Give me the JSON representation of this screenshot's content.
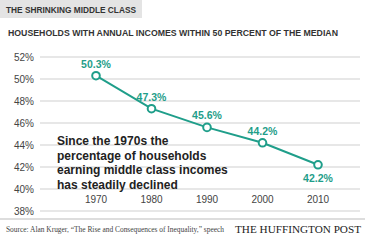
{
  "chart_data": {
    "type": "line",
    "banner": "THE SHRINKING MIDDLE CLASS",
    "title": "HOUSEHOLDS WITH ANNUAL INCOMES WITHIN 50 PERCENT OF THE MEDIAN",
    "categories": [
      "1970",
      "1980",
      "1990",
      "2000",
      "2010"
    ],
    "values": [
      50.3,
      47.3,
      45.6,
      44.2,
      42.2
    ],
    "value_labels": [
      "50.3%",
      "47.3%",
      "45.6%",
      "44.2%",
      "42.2%"
    ],
    "data_labels": true,
    "color": "#1f9e8a",
    "marker": "circle",
    "line_style": "solid",
    "ylim": [
      38,
      52
    ],
    "yticks": [
      {
        "value": 38,
        "label": "38%"
      },
      {
        "value": 40,
        "label": "40%"
      },
      {
        "value": 42,
        "label": "42%"
      },
      {
        "value": 44,
        "label": "44%"
      },
      {
        "value": 46,
        "label": "46%"
      },
      {
        "value": 48,
        "label": "48%"
      },
      {
        "value": 50,
        "label": "50%"
      },
      {
        "value": 52,
        "label": "52%"
      }
    ],
    "grid": true,
    "annotation": [
      "Since the 1970s the",
      "percentage of households",
      "earning middle class incomes",
      "has steadily declined"
    ],
    "source": "Source: Alan Kruger, “The Rise and Consequences of Inequality,” speech",
    "publisher": "THE HUFFINGTON POST"
  }
}
